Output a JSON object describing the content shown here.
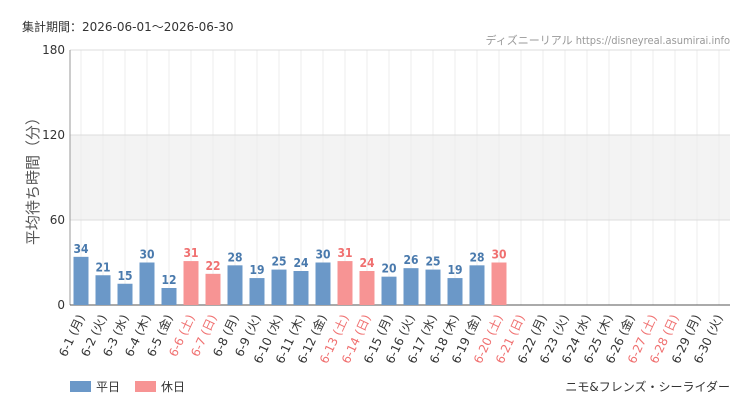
{
  "header": {
    "period": "集計期間：2026-06-01～2026-06-30",
    "credit": "ディズニーリアル https://disneyreal.asumirai.info"
  },
  "footer": {
    "title": "ニモ&フレンズ・シーライダー"
  },
  "legend": [
    {
      "label": "平日",
      "color": "#6b98c8"
    },
    {
      "label": "休日",
      "color": "#f79494"
    }
  ],
  "chart_data": {
    "type": "bar",
    "ylabel": "平均待ち時間（分）",
    "ylim": [
      0,
      180
    ],
    "yticks": [
      0,
      60,
      120,
      180
    ],
    "grid": true,
    "legend_position": "bottom-left",
    "colors": {
      "weekday": "#6b98c8",
      "holiday": "#f79494",
      "weekday_label": "#4a7aad",
      "holiday_label": "#f07070"
    },
    "categories": [
      "6-1 (月)",
      "6-2 (火)",
      "6-3 (水)",
      "6-4 (木)",
      "6-5 (金)",
      "6-6 (土)",
      "6-7 (日)",
      "6-8 (月)",
      "6-9 (火)",
      "6-10 (水)",
      "6-11 (木)",
      "6-12 (金)",
      "6-13 (土)",
      "6-14 (日)",
      "6-15 (月)",
      "6-16 (火)",
      "6-17 (水)",
      "6-18 (木)",
      "6-19 (金)",
      "6-20 (土)",
      "6-21 (日)",
      "6-22 (月)",
      "6-23 (火)",
      "6-24 (水)",
      "6-25 (木)",
      "6-26 (金)",
      "6-27 (土)",
      "6-28 (日)",
      "6-29 (月)",
      "6-30 (火)"
    ],
    "day_type": [
      "平日",
      "平日",
      "平日",
      "平日",
      "平日",
      "休日",
      "休日",
      "平日",
      "平日",
      "平日",
      "平日",
      "平日",
      "休日",
      "休日",
      "平日",
      "平日",
      "平日",
      "平日",
      "平日",
      "休日",
      "休日",
      "平日",
      "平日",
      "平日",
      "平日",
      "平日",
      "休日",
      "休日",
      "平日",
      "平日"
    ],
    "values": [
      34,
      21,
      15,
      30,
      12,
      31,
      22,
      28,
      19,
      25,
      24,
      30,
      31,
      24,
      20,
      26,
      25,
      19,
      28,
      30,
      null,
      null,
      null,
      null,
      null,
      null,
      null,
      null,
      null,
      null
    ]
  }
}
